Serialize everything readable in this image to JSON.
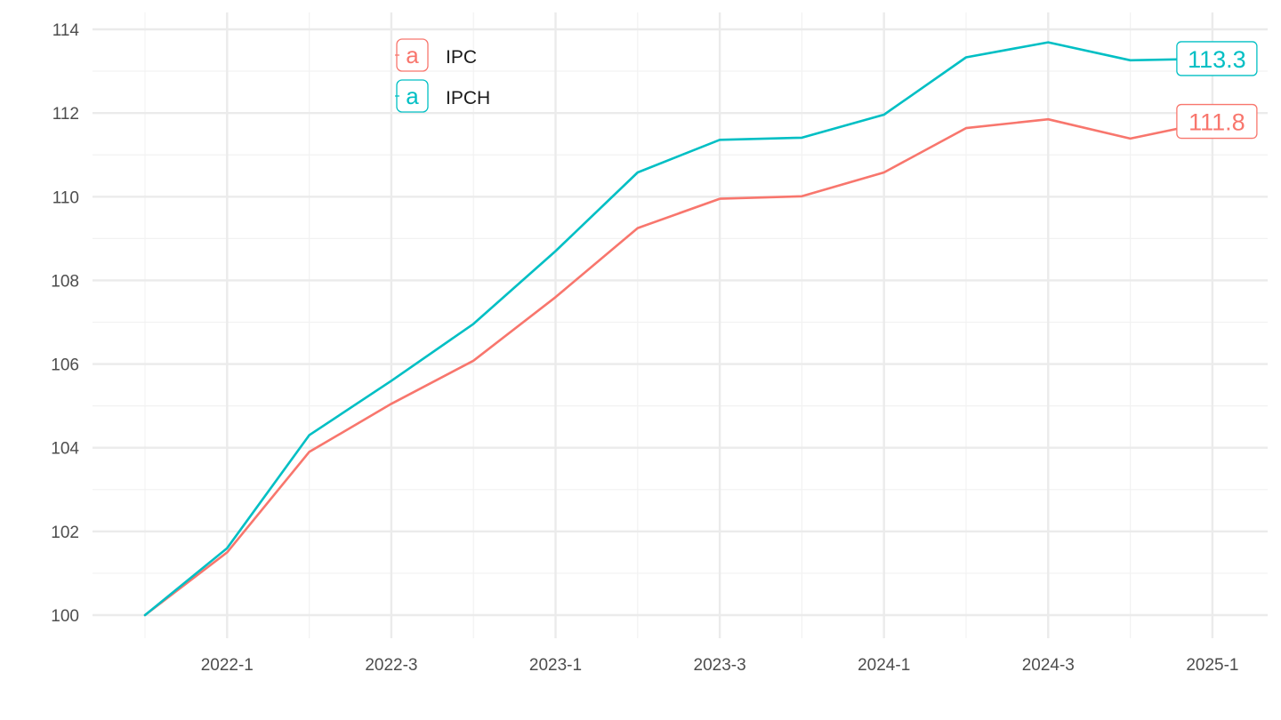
{
  "chart_data": {
    "type": "line",
    "title": "",
    "xlabel": "",
    "ylabel": "",
    "x": [
      "2021-4",
      "2022-1",
      "2022-2",
      "2022-3",
      "2022-4",
      "2023-1",
      "2023-2",
      "2023-3",
      "2023-4",
      "2024-1",
      "2024-2",
      "2024-3",
      "2024-4",
      "2025-1"
    ],
    "x_ticks": [
      "2022-1",
      "2022-3",
      "2023-1",
      "2023-3",
      "2024-1",
      "2024-3",
      "2025-1"
    ],
    "ylim": [
      99.5,
      114.4
    ],
    "y_ticks": [
      100,
      102,
      104,
      106,
      108,
      110,
      112,
      114
    ],
    "grid": true,
    "legend": {
      "placement": "top-left-inside",
      "key_glyph": "a"
    },
    "series": [
      {
        "name": "IPC",
        "color": "#F8766D",
        "values": [
          100.0,
          101.5,
          103.9,
          105.05,
          106.08,
          107.6,
          109.25,
          109.95,
          110.01,
          110.58,
          111.64,
          111.85,
          111.39,
          111.8
        ],
        "end_label": "111.8"
      },
      {
        "name": "IPCH",
        "color": "#00BFC4",
        "values": [
          100.0,
          101.6,
          104.3,
          105.6,
          106.96,
          108.7,
          110.58,
          111.36,
          111.41,
          111.96,
          113.33,
          113.69,
          113.26,
          113.3
        ],
        "end_label": "113.3"
      }
    ]
  }
}
